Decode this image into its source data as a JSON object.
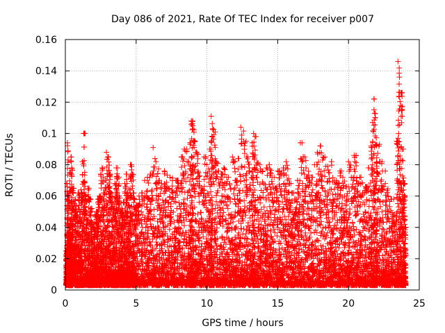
{
  "chart_data": {
    "type": "scatter",
    "title": "Day 086 of 2021, Rate Of TEC Index for receiver p007",
    "xlabel": "GPS time / hours",
    "ylabel": "ROTI / TECUs",
    "xlim": [
      0,
      25
    ],
    "ylim": [
      0,
      0.16
    ],
    "xticks": [
      0,
      5,
      10,
      15,
      20,
      25
    ],
    "yticks": [
      0,
      0.02,
      0.04,
      0.06,
      0.08,
      0.1,
      0.12,
      0.14,
      0.16
    ],
    "xtick_labels": [
      "0",
      "5",
      "10",
      "15",
      "20",
      "25"
    ],
    "ytick_labels": [
      "0",
      "0.02",
      "0.04",
      "0.06",
      "0.08",
      "0.1",
      "0.12",
      "0.14",
      "0.16"
    ],
    "grid": true,
    "marker": "+",
    "color": "#ff0000",
    "series": [
      {
        "x": [
          0.05,
          0.1,
          0.15,
          0.2,
          0.25,
          0.3,
          0.35,
          0.4,
          0.45,
          0.5,
          0.6,
          0.7,
          0.8,
          0.9,
          1.0,
          1.1,
          1.2,
          1.3,
          1.4,
          1.5,
          1.6,
          1.7,
          1.8,
          1.9,
          2.0,
          2.1,
          2.2,
          2.3,
          2.4,
          2.5,
          2.6,
          2.7,
          2.8,
          2.9,
          3.0,
          3.1,
          3.2,
          3.3,
          3.4,
          3.5,
          3.6,
          3.7,
          3.8,
          3.9,
          4.0,
          4.1,
          4.2,
          4.3,
          4.4,
          4.5,
          4.6,
          4.7,
          4.8,
          4.9,
          5.0,
          5.2,
          5.4,
          5.6,
          5.8,
          6.0,
          6.2,
          6.4,
          6.6,
          6.8,
          7.0,
          7.2,
          7.4,
          7.6,
          7.8,
          8.0,
          8.2,
          8.4,
          8.6,
          8.8,
          8.9,
          9.0,
          9.1,
          9.2,
          9.4,
          9.6,
          9.8,
          10.0,
          10.2,
          10.3,
          10.4,
          10.6,
          10.8,
          11.0,
          11.2,
          11.4,
          11.6,
          11.8,
          12.0,
          12.2,
          12.4,
          12.6,
          12.8,
          13.0,
          13.2,
          13.3,
          13.4,
          13.6,
          13.8,
          14.0,
          14.2,
          14.4,
          14.6,
          14.8,
          15.0,
          15.2,
          15.4,
          15.6,
          15.8,
          16.0,
          16.2,
          16.4,
          16.6,
          16.8,
          17.0,
          17.2,
          17.4,
          17.6,
          17.8,
          18.0,
          18.2,
          18.4,
          18.6,
          18.8,
          19.0,
          19.2,
          19.4,
          19.6,
          19.8,
          20.0,
          20.2,
          20.4,
          20.6,
          20.8,
          21.0,
          21.2,
          21.4,
          21.6,
          21.7,
          21.8,
          21.9,
          22.0,
          22.2,
          22.4,
          22.6,
          22.8,
          23.0,
          23.2,
          23.4,
          23.5,
          23.6,
          23.7,
          23.8,
          23.9,
          24.0
        ],
        "y": [
          0.025,
          0.068,
          0.094,
          0.06,
          0.04,
          0.075,
          0.045,
          0.085,
          0.078,
          0.065,
          0.055,
          0.058,
          0.048,
          0.062,
          0.05,
          0.064,
          0.082,
          0.1,
          0.06,
          0.045,
          0.065,
          0.058,
          0.052,
          0.042,
          0.04,
          0.048,
          0.05,
          0.058,
          0.06,
          0.074,
          0.078,
          0.062,
          0.07,
          0.088,
          0.085,
          0.074,
          0.062,
          0.06,
          0.052,
          0.068,
          0.078,
          0.072,
          0.06,
          0.05,
          0.052,
          0.056,
          0.068,
          0.074,
          0.06,
          0.064,
          0.08,
          0.074,
          0.062,
          0.058,
          0.054,
          0.06,
          0.062,
          0.07,
          0.072,
          0.074,
          0.091,
          0.082,
          0.07,
          0.068,
          0.076,
          0.065,
          0.072,
          0.062,
          0.07,
          0.068,
          0.085,
          0.09,
          0.082,
          0.094,
          0.108,
          0.105,
          0.095,
          0.088,
          0.075,
          0.065,
          0.085,
          0.08,
          0.09,
          0.111,
          0.103,
          0.082,
          0.076,
          0.074,
          0.078,
          0.072,
          0.068,
          0.085,
          0.07,
          0.084,
          0.104,
          0.095,
          0.085,
          0.078,
          0.094,
          0.1,
          0.098,
          0.081,
          0.076,
          0.068,
          0.078,
          0.08,
          0.072,
          0.065,
          0.076,
          0.074,
          0.078,
          0.082,
          0.068,
          0.062,
          0.058,
          0.07,
          0.094,
          0.085,
          0.078,
          0.07,
          0.072,
          0.08,
          0.088,
          0.092,
          0.085,
          0.079,
          0.075,
          0.082,
          0.07,
          0.068,
          0.076,
          0.072,
          0.066,
          0.082,
          0.072,
          0.086,
          0.068,
          0.072,
          0.062,
          0.066,
          0.078,
          0.092,
          0.107,
          0.122,
          0.11,
          0.093,
          0.082,
          0.076,
          0.068,
          0.06,
          0.058,
          0.048,
          0.095,
          0.146,
          0.136,
          0.126,
          0.09,
          0.068,
          0.04
        ]
      }
    ],
    "noise_seed": 86
  }
}
